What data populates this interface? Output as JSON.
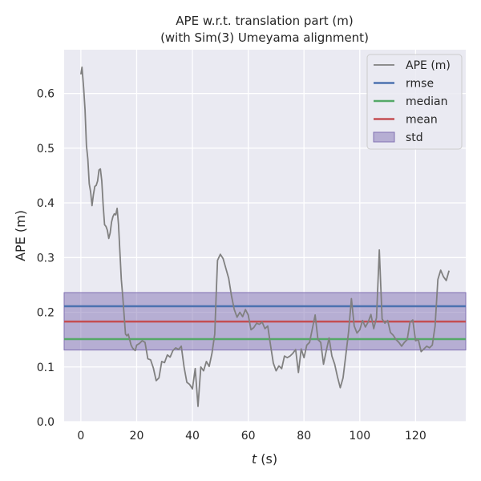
{
  "chart_data": {
    "type": "line",
    "title": "APE w.r.t. translation part (m)",
    "subtitle": "(with Sim(3) Umeyama alignment)",
    "xlabel_var": "t",
    "xlabel_unit": " (s)",
    "ylabel": "APE (m)",
    "xlim": [
      -6,
      138
    ],
    "ylim": [
      0,
      0.68
    ],
    "x_ticks": [
      0,
      20,
      40,
      60,
      80,
      100,
      120
    ],
    "y_ticks": [
      0.0,
      0.1,
      0.2,
      0.3,
      0.4,
      0.5,
      0.6
    ],
    "y_tick_labels": [
      "0.0",
      "0.1",
      "0.2",
      "0.3",
      "0.4",
      "0.5",
      "0.6"
    ],
    "grid": true,
    "legend_position": "top-right",
    "legend": [
      "APE (m)",
      "rmse",
      "median",
      "mean",
      "std"
    ],
    "colors": {
      "ape": "#808080",
      "rmse": "#4c72b0",
      "median": "#55a868",
      "mean": "#c44e52",
      "std": "#8172b3",
      "background": "#eaeaf2",
      "grid": "#ffffff"
    },
    "stats": {
      "rmse": 0.211,
      "median": 0.151,
      "mean": 0.183,
      "std_low": 0.131,
      "std_high": 0.236
    },
    "series": [
      {
        "name": "APE (m)",
        "x": [
          0,
          0.4,
          1,
          1.5,
          2,
          2.5,
          3,
          3.5,
          4,
          4.5,
          5,
          5.5,
          6,
          6.5,
          7,
          7.5,
          8,
          8.5,
          9,
          9.5,
          10,
          10.5,
          11,
          11.5,
          12,
          12.5,
          13,
          13.5,
          14,
          14.5,
          15,
          15.5,
          16,
          16.5,
          17,
          17.5,
          18,
          18.5,
          19,
          19.5,
          20,
          21,
          22,
          23,
          24,
          25,
          26,
          27,
          28,
          29,
          30,
          31,
          32,
          33,
          34,
          35,
          36,
          37,
          38,
          39,
          40,
          41,
          42,
          43,
          44,
          45,
          46,
          47,
          48,
          48.5,
          49,
          50,
          51,
          52,
          53,
          54,
          55,
          56,
          57,
          58,
          59,
          60,
          61,
          62,
          63,
          64,
          65,
          66,
          67,
          68,
          69,
          70,
          71,
          72,
          73,
          74,
          75,
          76,
          77,
          78,
          79,
          80,
          81,
          82,
          83,
          84,
          85,
          86,
          87,
          88,
          89,
          90,
          91,
          92,
          93,
          94,
          95,
          96,
          97,
          98,
          99,
          100,
          101,
          102,
          103,
          104,
          105,
          106,
          107,
          108,
          109,
          110,
          111,
          112,
          113,
          114,
          115,
          116,
          117,
          118,
          119,
          120,
          121,
          122,
          123,
          124,
          125,
          126,
          127,
          128,
          129,
          130,
          131,
          132
        ],
        "y": [
          0.635,
          0.648,
          0.61,
          0.57,
          0.505,
          0.48,
          0.435,
          0.42,
          0.395,
          0.415,
          0.43,
          0.432,
          0.44,
          0.46,
          0.462,
          0.44,
          0.395,
          0.36,
          0.357,
          0.35,
          0.335,
          0.345,
          0.365,
          0.375,
          0.38,
          0.378,
          0.39,
          0.36,
          0.31,
          0.26,
          0.23,
          0.195,
          0.16,
          0.157,
          0.16,
          0.15,
          0.14,
          0.135,
          0.132,
          0.13,
          0.14,
          0.143,
          0.148,
          0.145,
          0.115,
          0.113,
          0.098,
          0.075,
          0.08,
          0.11,
          0.108,
          0.122,
          0.118,
          0.13,
          0.135,
          0.132,
          0.138,
          0.1,
          0.072,
          0.068,
          0.06,
          0.097,
          0.028,
          0.1,
          0.093,
          0.11,
          0.101,
          0.125,
          0.16,
          0.23,
          0.295,
          0.306,
          0.298,
          0.28,
          0.262,
          0.23,
          0.205,
          0.191,
          0.2,
          0.192,
          0.205,
          0.195,
          0.168,
          0.172,
          0.18,
          0.178,
          0.182,
          0.17,
          0.175,
          0.14,
          0.107,
          0.093,
          0.102,
          0.097,
          0.12,
          0.117,
          0.12,
          0.125,
          0.132,
          0.09,
          0.133,
          0.117,
          0.14,
          0.145,
          0.17,
          0.195,
          0.15,
          0.145,
          0.105,
          0.13,
          0.153,
          0.12,
          0.105,
          0.082,
          0.062,
          0.08,
          0.122,
          0.165,
          0.225,
          0.175,
          0.162,
          0.168,
          0.185,
          0.173,
          0.182,
          0.196,
          0.17,
          0.19,
          0.314,
          0.188,
          0.18,
          0.185,
          0.163,
          0.158,
          0.15,
          0.145,
          0.138,
          0.145,
          0.15,
          0.182,
          0.186,
          0.148,
          0.15,
          0.128,
          0.133,
          0.138,
          0.135,
          0.14,
          0.175,
          0.26,
          0.277,
          0.265,
          0.258,
          0.276
        ]
      }
    ]
  }
}
